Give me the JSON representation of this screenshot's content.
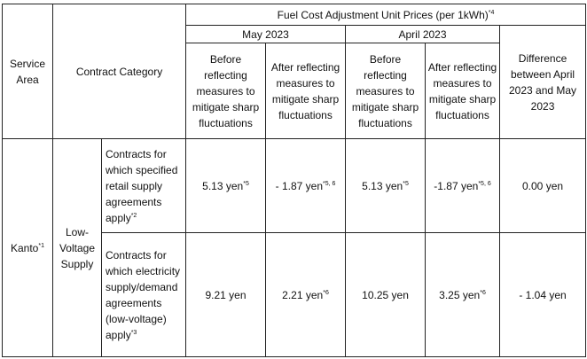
{
  "table": {
    "header": {
      "service_area": "Service Area",
      "contract_category": "Contract Category",
      "group_title": "Fuel Cost Adjustment Unit Prices (per 1kWh)",
      "group_title_note": "*4",
      "may": "May 2023",
      "april": "April 2023",
      "before": "Before reflecting measures to mitigate sharp fluctuations",
      "after": "After reflecting measures to mitigate sharp fluctuations",
      "difference": "Difference between April 2023 and May 2023"
    },
    "area": {
      "name": "Kanto",
      "note": "*1"
    },
    "supply": "Low-Voltage Supply",
    "rows": [
      {
        "contract": "Contracts for which specified retail supply agreements apply",
        "contract_note": "*2",
        "may_before": "5.13 yen",
        "may_before_note": "*5",
        "may_after": "- 1.87 yen",
        "may_after_note": "*5, 6",
        "apr_before": "5.13 yen",
        "apr_before_note": "*5",
        "apr_after": "-1.87 yen",
        "apr_after_note": "*5, 6",
        "difference": "0.00 yen"
      },
      {
        "contract": "Contracts for which electricity supply/demand agreements (low-voltage) apply",
        "contract_note": "*3",
        "may_before": "9.21 yen",
        "may_before_note": "",
        "may_after": "2.21 yen",
        "may_after_note": "*6",
        "apr_before": "10.25 yen",
        "apr_before_note": "",
        "apr_after": "3.25 yen",
        "apr_after_note": "*6",
        "difference": "- 1.04 yen"
      }
    ]
  }
}
